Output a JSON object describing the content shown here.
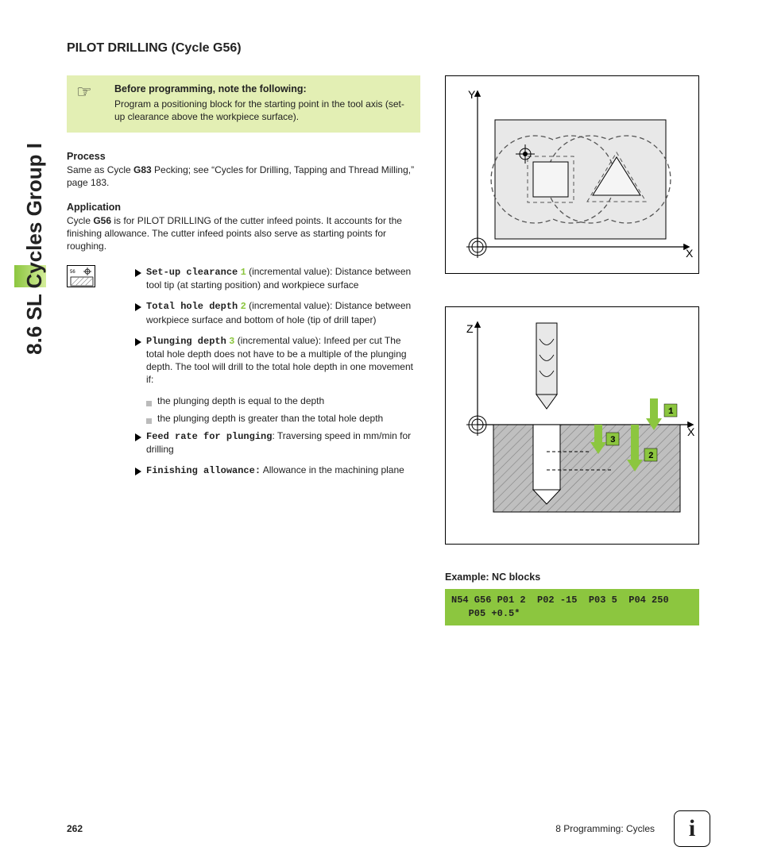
{
  "side_tab": "8.6 SL Cycles Group I",
  "title": "PILOT DRILLING (Cycle G56)",
  "note": {
    "title": "Before programming, note the following:",
    "body": "Program a positioning block for the starting point in the tool axis (set-up clearance above the workpiece surface)."
  },
  "process": {
    "heading": "Process",
    "text_a": "Same as Cycle ",
    "text_bold": "G83",
    "text_b": " Pecking; see “Cycles for Drilling, Tapping and Thread Milling,” page 183."
  },
  "application": {
    "heading": "Application",
    "text_a": "Cycle ",
    "text_bold": "G56",
    "text_b": " is for PILOT DRILLING of the cutter infeed points. It accounts for the finishing allowance. The cutter infeed points also serve as starting points for roughing."
  },
  "params": [
    {
      "name": "Set-up clearance",
      "num": "1",
      "text": " (incremental value): Distance between tool tip (at starting position) and workpiece surface"
    },
    {
      "name": "Total hole depth",
      "num": "2",
      "text": " (incremental value): Distance between workpiece surface and bottom of hole (tip of drill taper)"
    },
    {
      "name": "Plunging depth",
      "num": "3",
      "text": " (incremental value): Infeed per cut The total hole depth does not have to be a multiple of the plunging depth. The tool will drill to the total hole depth in one movement if:",
      "subs": [
        "the plunging depth is equal to the depth",
        "the plunging depth is greater than the total hole depth"
      ]
    },
    {
      "name": "Feed rate for plunging",
      "num": "",
      "text": ": Traversing speed in mm/min for drilling"
    },
    {
      "name": "Finishing allowance:",
      "num": "",
      "text": " Allowance in the machining plane"
    }
  ],
  "fig1": {
    "axes": {
      "y_label": "Y",
      "x_label": "X"
    },
    "colors": {
      "bg": "#e8e8e8",
      "stroke": "#000",
      "dash": "#555",
      "fill_light": "#f2f2f2"
    }
  },
  "fig2": {
    "axes": {
      "z_label": "Z",
      "x_label": "X"
    },
    "labels": {
      "n1": "1",
      "n2": "2",
      "n3": "3"
    },
    "colors": {
      "workpiece": "#bfbfbf",
      "hatch": "#808080",
      "arrow": "#8cc63f",
      "label_bg": "#8cc63f",
      "tool": "#e0e0e0"
    }
  },
  "example": {
    "heading": "Example: NC blocks",
    "code": "N54 G56 P01 2  P02 -15  P03 5  P04 250\n   P05 +0.5*"
  },
  "footer": {
    "page": "262",
    "chapter": "8 Programming: Cycles",
    "info": "i"
  }
}
